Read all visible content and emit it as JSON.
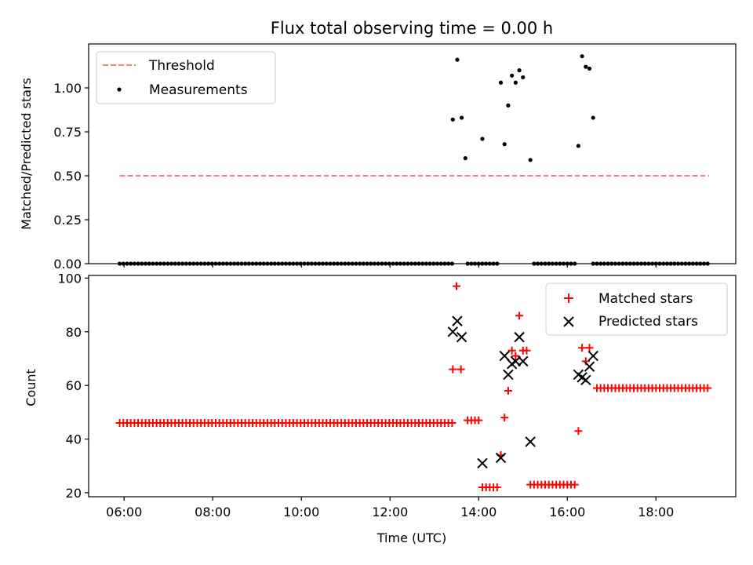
{
  "chart_data": [
    {
      "type": "scatter",
      "title": "Flux total observing time = 0.00 h",
      "xlabel": "",
      "ylabel": "Matched/Predicted stars",
      "xlim": [
        "05:12",
        "19:48"
      ],
      "ylim": [
        0,
        1.25
      ],
      "yticks": [
        "0.00",
        "0.25",
        "0.50",
        "0.75",
        "1.00"
      ],
      "legend": {
        "placement": "top-left",
        "entries": [
          "Threshold",
          "Measurements"
        ]
      },
      "series": [
        {
          "name": "Threshold",
          "kind": "dashed-line",
          "color": "#ff7f7f",
          "points": [
            [
              "05:54",
              0.5
            ],
            [
              "19:12",
              0.5
            ]
          ]
        },
        {
          "name": "Measurements",
          "kind": "dots",
          "color": "#000000",
          "points": [
            [
              "13:25",
              0.82
            ],
            [
              "13:31",
              1.16
            ],
            [
              "13:37",
              0.83
            ],
            [
              "13:42",
              0.6
            ],
            [
              "14:05",
              0.71
            ],
            [
              "14:30",
              1.03
            ],
            [
              "14:35",
              0.68
            ],
            [
              "14:40",
              0.9
            ],
            [
              "14:45",
              1.07
            ],
            [
              "14:50",
              1.03
            ],
            [
              "14:55",
              1.1
            ],
            [
              "15:00",
              1.06
            ],
            [
              "15:10",
              0.59
            ],
            [
              "16:15",
              0.67
            ],
            [
              "16:20",
              1.18
            ],
            [
              "16:25",
              1.12
            ],
            [
              "16:30",
              1.11
            ],
            [
              "16:35",
              0.83
            ]
          ],
          "zero_segments": [
            [
              "05:54",
              "13:24"
            ],
            [
              "13:45",
              "14:10"
            ],
            [
              "14:15",
              "14:25"
            ],
            [
              "15:15",
              "16:10"
            ],
            [
              "16:35",
              "19:10"
            ]
          ]
        }
      ]
    },
    {
      "type": "scatter",
      "xlabel": "Time (UTC)",
      "ylabel": "Count",
      "xlim": [
        "05:12",
        "19:48"
      ],
      "ylim": [
        18.5,
        101
      ],
      "xticks": [
        "06:00",
        "08:00",
        "10:00",
        "12:00",
        "14:00",
        "16:00",
        "18:00"
      ],
      "yticks": [
        "20",
        "40",
        "60",
        "80",
        "100"
      ],
      "legend": {
        "placement": "top-right",
        "entries": [
          "Matched stars",
          "Predicted stars"
        ]
      },
      "series": [
        {
          "name": "Matched stars",
          "marker": "plus",
          "color": "#ff0000",
          "runs": [
            {
              "from": "05:54",
              "to": "13:24",
              "value": 46
            },
            {
              "from": "13:45",
              "to": "14:00",
              "value": 47
            },
            {
              "from": "14:05",
              "to": "14:25",
              "value": 22
            },
            {
              "from": "15:10",
              "to": "16:10",
              "value": 23
            },
            {
              "from": "16:40",
              "to": "19:10",
              "value": 59
            }
          ],
          "points": [
            [
              "13:25",
              66
            ],
            [
              "13:30",
              97
            ],
            [
              "13:36",
              66
            ],
            [
              "14:30",
              34
            ],
            [
              "14:35",
              48
            ],
            [
              "14:40",
              58
            ],
            [
              "14:45",
              73
            ],
            [
              "14:50",
              71
            ],
            [
              "14:55",
              86
            ],
            [
              "15:00",
              73
            ],
            [
              "15:05",
              73
            ],
            [
              "16:15",
              43
            ],
            [
              "16:20",
              74
            ],
            [
              "16:25",
              69
            ],
            [
              "16:30",
              74
            ]
          ]
        },
        {
          "name": "Predicted stars",
          "marker": "x",
          "color": "#000000",
          "points": [
            [
              "13:25",
              80
            ],
            [
              "13:31",
              84
            ],
            [
              "13:37",
              78
            ],
            [
              "14:05",
              31
            ],
            [
              "14:30",
              33
            ],
            [
              "14:35",
              71
            ],
            [
              "14:40",
              64
            ],
            [
              "14:45",
              68
            ],
            [
              "14:50",
              69
            ],
            [
              "14:55",
              78
            ],
            [
              "15:00",
              69
            ],
            [
              "15:10",
              39
            ],
            [
              "16:15",
              64
            ],
            [
              "16:20",
              63
            ],
            [
              "16:25",
              62
            ],
            [
              "16:30",
              67
            ],
            [
              "16:35",
              71
            ]
          ]
        }
      ]
    }
  ]
}
